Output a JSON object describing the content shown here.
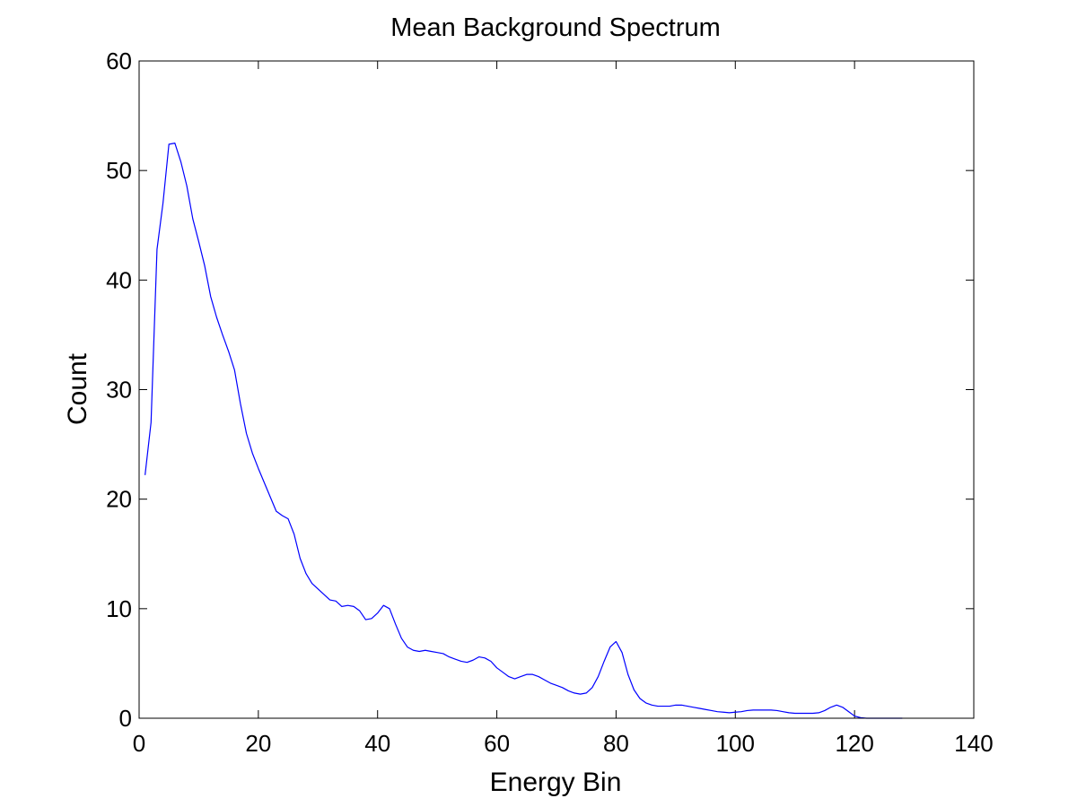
{
  "chart_data": {
    "type": "line",
    "title": "Mean Background Spectrum",
    "xlabel": "Energy Bin",
    "ylabel": "Count",
    "xlim": [
      0,
      140
    ],
    "ylim": [
      0,
      60
    ],
    "xticks": [
      "0",
      "20",
      "40",
      "60",
      "80",
      "100",
      "120",
      "140"
    ],
    "yticks": [
      "0",
      "10",
      "20",
      "30",
      "40",
      "50",
      "60"
    ],
    "grid": false,
    "legend": "none",
    "series": [
      {
        "color": "#0000ff",
        "x": [
          1,
          2,
          3,
          4,
          5,
          6,
          7,
          8,
          9,
          10,
          11,
          12,
          13,
          14,
          15,
          16,
          17,
          18,
          19,
          20,
          21,
          22,
          23,
          24,
          25,
          26,
          27,
          28,
          29,
          30,
          31,
          32,
          33,
          34,
          35,
          36,
          37,
          38,
          39,
          40,
          41,
          42,
          43,
          44,
          45,
          46,
          47,
          48,
          49,
          50,
          51,
          52,
          53,
          54,
          55,
          56,
          57,
          58,
          59,
          60,
          61,
          62,
          63,
          64,
          65,
          66,
          67,
          68,
          69,
          70,
          71,
          72,
          73,
          74,
          75,
          76,
          77,
          78,
          79,
          80,
          81,
          82,
          83,
          84,
          85,
          86,
          87,
          88,
          89,
          90,
          91,
          92,
          93,
          94,
          95,
          96,
          97,
          98,
          99,
          100,
          101,
          102,
          103,
          104,
          105,
          106,
          107,
          108,
          109,
          110,
          111,
          112,
          113,
          114,
          115,
          116,
          117,
          118,
          119,
          120,
          121,
          122,
          123,
          124,
          125,
          126,
          127,
          128
        ],
        "y": [
          22.2,
          27.0,
          42.8,
          47.0,
          52.4,
          52.5,
          50.8,
          48.6,
          45.6,
          43.5,
          41.3,
          38.5,
          36.6,
          35.0,
          33.5,
          31.8,
          28.7,
          26.0,
          24.2,
          22.8,
          21.5,
          20.2,
          18.9,
          18.5,
          18.2,
          16.8,
          14.6,
          13.2,
          12.3,
          11.8,
          11.3,
          10.8,
          10.7,
          10.2,
          10.3,
          10.2,
          9.8,
          9.0,
          9.1,
          9.6,
          10.3,
          10.0,
          8.6,
          7.3,
          6.5,
          6.2,
          6.1,
          6.2,
          6.1,
          6.0,
          5.9,
          5.6,
          5.4,
          5.2,
          5.1,
          5.3,
          5.6,
          5.5,
          5.2,
          4.6,
          4.2,
          3.8,
          3.6,
          3.8,
          4.0,
          4.0,
          3.8,
          3.5,
          3.2,
          3.0,
          2.8,
          2.5,
          2.3,
          2.2,
          2.3,
          2.8,
          3.8,
          5.2,
          6.5,
          7.0,
          6.0,
          4.0,
          2.6,
          1.8,
          1.4,
          1.2,
          1.1,
          1.1,
          1.1,
          1.2,
          1.2,
          1.1,
          1.0,
          0.9,
          0.8,
          0.7,
          0.6,
          0.55,
          0.5,
          0.55,
          0.6,
          0.7,
          0.75,
          0.75,
          0.75,
          0.75,
          0.7,
          0.6,
          0.5,
          0.45,
          0.45,
          0.45,
          0.45,
          0.5,
          0.7,
          1.0,
          1.2,
          1.0,
          0.6,
          0.2,
          0.05,
          0.0,
          0.0,
          0.0,
          0.0,
          0.0,
          0.0,
          0.0
        ]
      }
    ]
  }
}
